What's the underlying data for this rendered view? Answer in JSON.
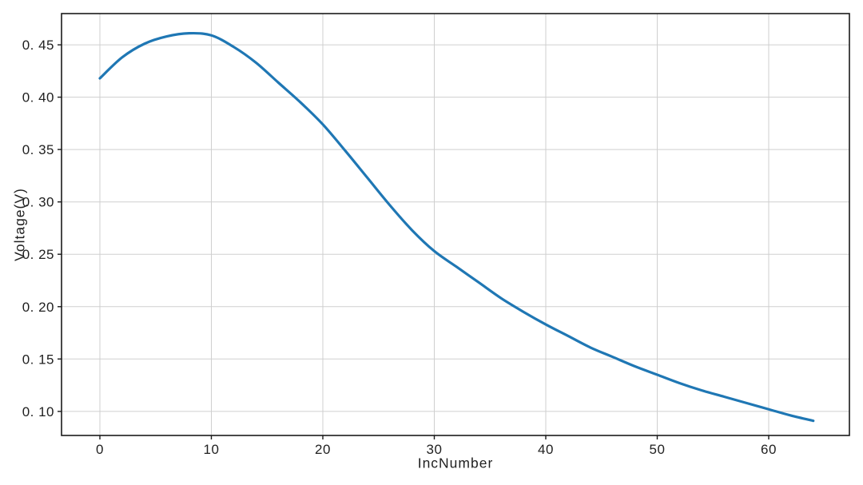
{
  "chart_data": {
    "type": "line",
    "title": "",
    "xlabel": "IncNumber",
    "ylabel": "Voltage(V)",
    "x": [
      0,
      2,
      4,
      6,
      8,
      10,
      12,
      14,
      16,
      18,
      20,
      22,
      24,
      26,
      28,
      30,
      32,
      34,
      36,
      38,
      40,
      42,
      44,
      46,
      48,
      50,
      52,
      54,
      56,
      58,
      60,
      62,
      64
    ],
    "series": [
      {
        "name": "voltage",
        "color": "#1f77b4",
        "values": [
          0.418,
          0.438,
          0.451,
          0.458,
          0.461,
          0.459,
          0.448,
          0.433,
          0.414,
          0.395,
          0.374,
          0.349,
          0.323,
          0.297,
          0.273,
          0.253,
          0.238,
          0.223,
          0.208,
          0.195,
          0.183,
          0.172,
          0.161,
          0.152,
          0.143,
          0.135,
          0.127,
          0.12,
          0.114,
          0.108,
          0.102,
          0.096,
          0.091
        ]
      }
    ],
    "peak": {
      "x": 8,
      "y": 0.461
    },
    "xlim": [
      -3.44,
      67.24
    ],
    "ylim": [
      0.077,
      0.4798
    ],
    "xticks": {
      "values": [
        0,
        10,
        20,
        30,
        40,
        50,
        60
      ],
      "labels": [
        "0",
        "10",
        "20",
        "30",
        "40",
        "50",
        "60"
      ]
    },
    "yticks": {
      "values": [
        0.1,
        0.15,
        0.2,
        0.25,
        0.3,
        0.35,
        0.4,
        0.45
      ],
      "labels": [
        "0. 10",
        "0. 15",
        "0. 20",
        "0. 25",
        "0. 30",
        "0. 35",
        "0. 40",
        "0. 45"
      ]
    },
    "grid": true,
    "legend": "none",
    "line_width": 3.2
  },
  "colors": {
    "line": "#1f77b4",
    "grid": "#cfcfcf",
    "frame": "#1a1a1a",
    "text": "#1f1f1f",
    "background": "#ffffff"
  }
}
